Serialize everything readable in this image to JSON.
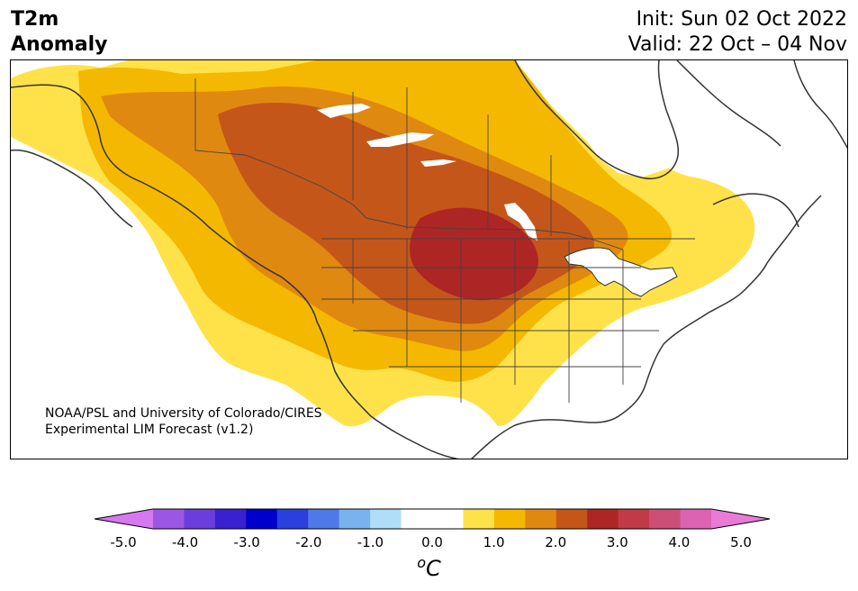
{
  "title": {
    "left_line1": "T2m",
    "left_line2": "Anomaly",
    "init": "Init: Sun 02 Oct 2022",
    "valid": "Valid: 22 Oct – 04 Nov"
  },
  "credit": {
    "line1": "NOAA/PSL and University of Colorado/CIRES",
    "line2": "Experimental LIM Forecast (v1.2)"
  },
  "colorbar": {
    "colors": [
      "#d678f0",
      "#9b57e3",
      "#6b3ddc",
      "#3920d0",
      "#0000cc",
      "#2a3fdd",
      "#4f79e8",
      "#7ab2f0",
      "#b0def8",
      "#ffffff",
      "#ffffff",
      "#ffe24a",
      "#f5b800",
      "#e08910",
      "#c4561a",
      "#ae2525",
      "#c23a48",
      "#cd4f78",
      "#db63b2",
      "#ea7ad6"
    ],
    "ticks": [
      "-5.0",
      "-4.0",
      "-3.0",
      "-2.0",
      "-1.0",
      "0.0",
      "1.0",
      "2.0",
      "3.0",
      "4.0",
      "5.0"
    ],
    "units": "oC"
  },
  "anomaly_colors": {
    "c1": "#ffe24a",
    "c2": "#f5b800",
    "c3": "#e08910",
    "c4": "#c4561a",
    "c5": "#ae2525"
  }
}
